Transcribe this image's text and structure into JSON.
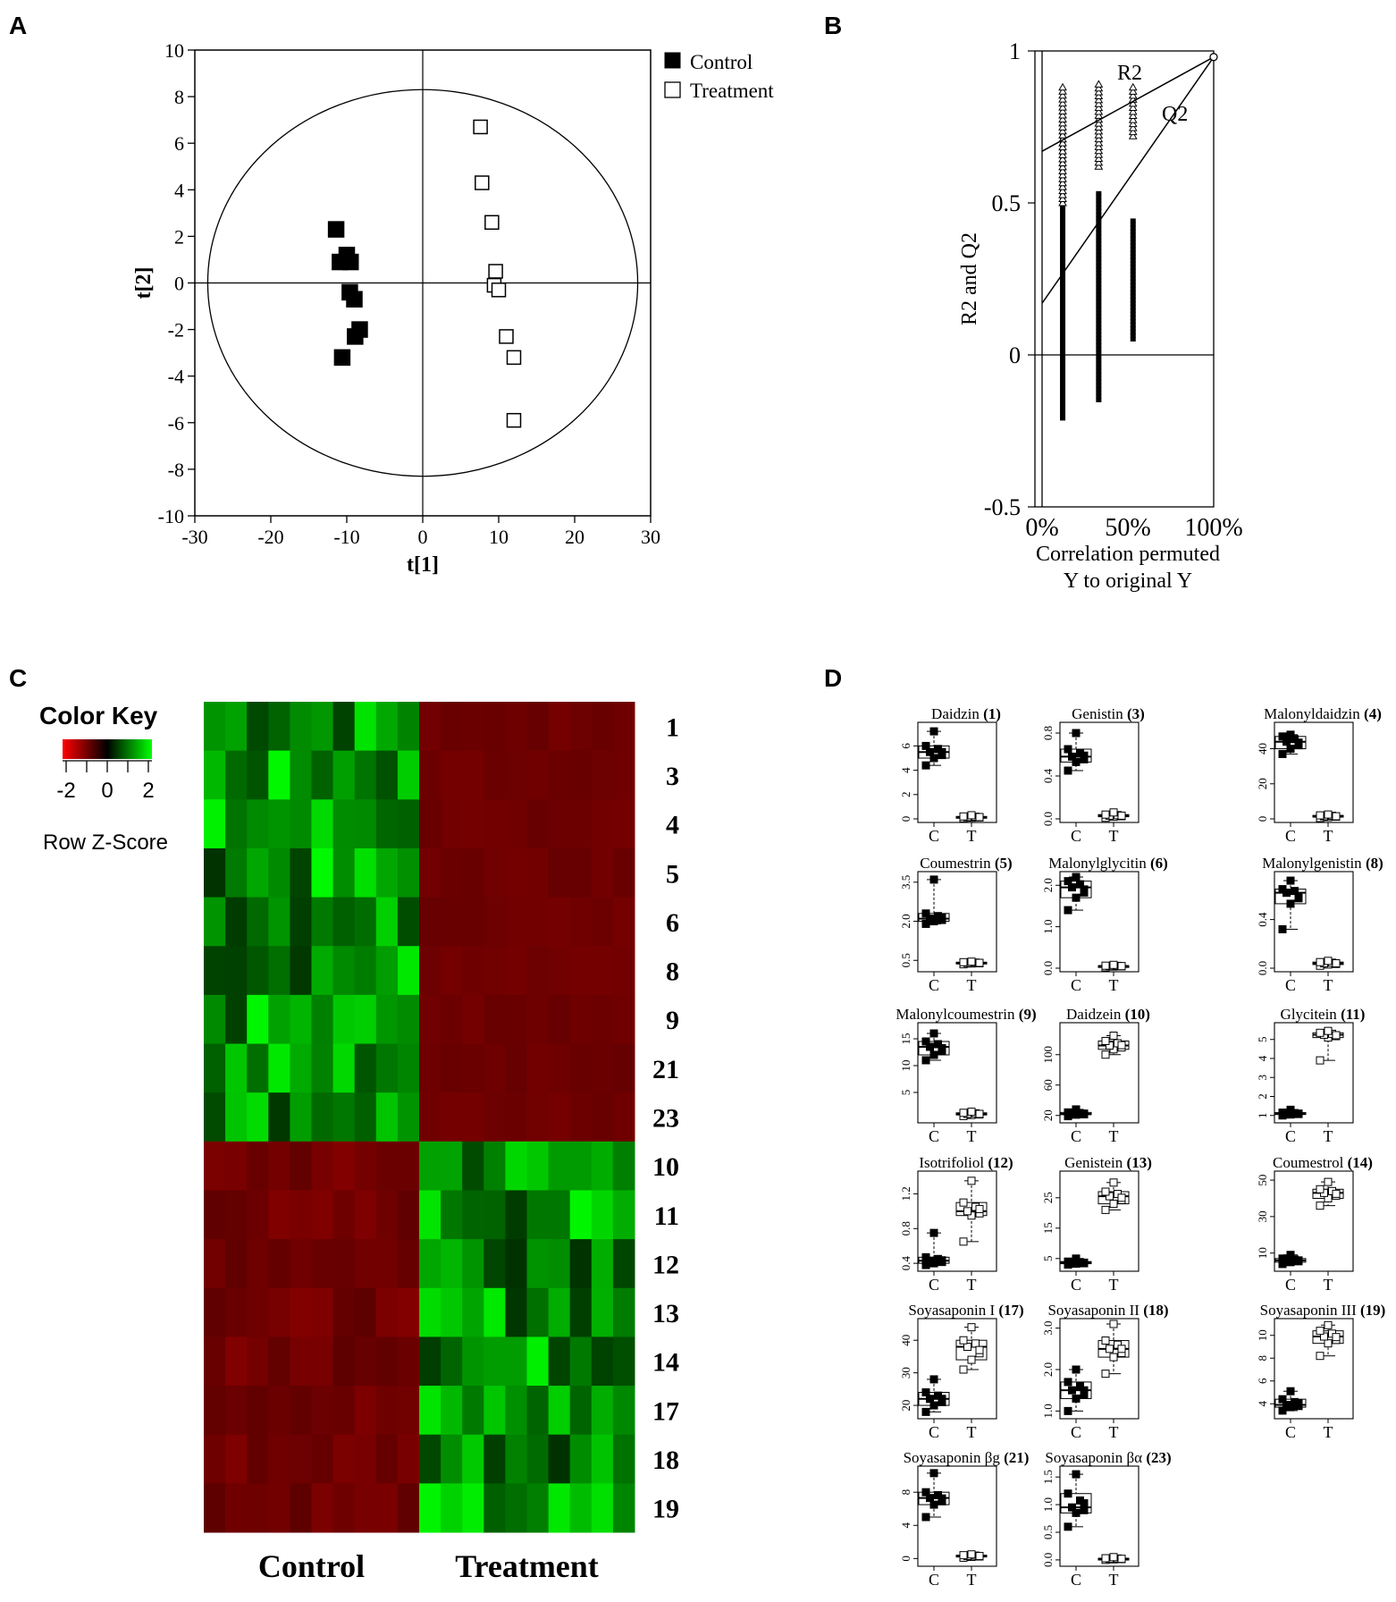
{
  "panel_labels": [
    "A",
    "B",
    "C",
    "D"
  ],
  "chart_data": [
    {
      "panel": "A",
      "type": "scatter",
      "xlabel": "t[1]",
      "ylabel": "t[2]",
      "xlim": [
        -30,
        30
      ],
      "ylim": [
        -10,
        10
      ],
      "xticks": [
        "-30",
        "-20",
        "-10",
        "0",
        "10",
        "20",
        "30"
      ],
      "yticks": [
        "-10",
        "-8",
        "-6",
        "-4",
        "-2",
        "0",
        "2",
        "4",
        "6",
        "8",
        "10"
      ],
      "ellipse_radius": [
        28.3,
        8.3
      ],
      "legend": "top-right",
      "series": [
        {
          "name": "Control",
          "marker": "filled-square",
          "color": "#000000",
          "points": [
            [
              -11.4,
              2.3
            ],
            [
              -10.9,
              0.9
            ],
            [
              -10.0,
              1.2
            ],
            [
              -9.5,
              0.9
            ],
            [
              -9.6,
              -0.4
            ],
            [
              -9.0,
              -0.7
            ],
            [
              -8.3,
              -2.0
            ],
            [
              -8.9,
              -2.3
            ],
            [
              -10.6,
              -3.2
            ]
          ]
        },
        {
          "name": "Treatment",
          "marker": "open-square",
          "color": "#000000",
          "points": [
            [
              7.6,
              6.7
            ],
            [
              7.8,
              4.3
            ],
            [
              9.1,
              2.6
            ],
            [
              9.6,
              0.5
            ],
            [
              9.4,
              -0.1
            ],
            [
              10.0,
              -0.3
            ],
            [
              11.0,
              -2.3
            ],
            [
              12.0,
              -3.2
            ],
            [
              12.0,
              -5.9
            ]
          ]
        }
      ]
    },
    {
      "panel": "B",
      "type": "scatter",
      "xlabel": "Correlation permuted Y to original Y",
      "xlabel_lines": [
        "Correlation permuted",
        "Y to original Y"
      ],
      "ylabel": "R2 and Q2",
      "xlim": [
        0,
        100
      ],
      "ylim": [
        -0.5,
        1
      ],
      "xticks": [
        "0%",
        "50%",
        "100%"
      ],
      "yticks": [
        "-0.5",
        "0",
        "0.5",
        "1"
      ],
      "r2_label": "R2",
      "q2_label": "Q2",
      "r2_line": {
        "intercept": 0.67,
        "end": [
          100,
          0.98
        ]
      },
      "q2_line": {
        "intercept": 0.17,
        "end": [
          100,
          0.98
        ]
      },
      "r2_permutations": [
        {
          "x": 12,
          "min": 0.5,
          "max": 0.88
        },
        {
          "x": 33,
          "min": 0.62,
          "max": 0.89
        },
        {
          "x": 53,
          "min": 0.72,
          "max": 0.88
        }
      ],
      "q2_permutations": [
        {
          "x": 12,
          "min": -0.21,
          "max": 0.72
        },
        {
          "x": 33,
          "min": -0.15,
          "max": 0.53
        },
        {
          "x": 53,
          "min": 0.05,
          "max": 0.44
        }
      ],
      "original": [
        100,
        0.98
      ]
    },
    {
      "panel": "C",
      "type": "heatmap",
      "color_key_title": "Color Key",
      "color_key_ticks": [
        "-2",
        "0",
        "2"
      ],
      "color_key_label": "Row Z-Score",
      "rows": [
        "1",
        "3",
        "4",
        "5",
        "6",
        "8",
        "9",
        "21",
        "23",
        "10",
        "11",
        "12",
        "13",
        "14",
        "17",
        "18",
        "19"
      ],
      "groups": [
        "Control",
        "Treatment"
      ],
      "columns_per_group": 10,
      "row_group_up": [
        "Control",
        "Control",
        "Control",
        "Control",
        "Control",
        "Control",
        "Control",
        "Control",
        "Control",
        "Treatment",
        "Treatment",
        "Treatment",
        "Treatment",
        "Treatment",
        "Treatment",
        "Treatment",
        "Treatment"
      ],
      "pattern": "Rows 1-23 high (green) in Control and low (red) in Treatment; rows 10-19 low (red) in Control and high (green) in Treatment"
    },
    {
      "panel": "D",
      "type": "box",
      "categories": [
        "C",
        "T"
      ],
      "plots": [
        {
          "name": "Daidzin",
          "num": "(1)",
          "yticks": [
            "0",
            "2",
            "4",
            "6"
          ],
          "ylim": [
            0,
            7.5
          ],
          "C": [
            4.4,
            5.0,
            5.5,
            6.0,
            7.2
          ],
          "T": [
            0.05,
            0.1,
            0.15,
            0.2,
            0.3
          ]
        },
        {
          "name": "Genistin",
          "num": "(3)",
          "yticks": [
            "0.0",
            "0.4",
            "0.8"
          ],
          "ylim": [
            0,
            0.85
          ],
          "C": [
            0.45,
            0.53,
            0.58,
            0.65,
            0.8
          ],
          "T": [
            0.01,
            0.02,
            0.03,
            0.04,
            0.06
          ]
        },
        {
          "name": "Malonyldaidzin",
          "num": "(4)",
          "yticks": [
            "0",
            "20",
            "40"
          ],
          "ylim": [
            0,
            52
          ],
          "C": [
            37,
            40,
            44,
            47,
            48
          ],
          "T": [
            0.5,
            1,
            1.5,
            2,
            2.5
          ]
        },
        {
          "name": "Coumestrin",
          "num": "(5)",
          "yticks": [
            "0.5",
            "2.0",
            "3.5"
          ],
          "ylim": [
            0.2,
            3.7
          ],
          "C": [
            1.9,
            2.0,
            2.1,
            2.3,
            3.6
          ],
          "T": [
            0.35,
            0.38,
            0.4,
            0.43,
            0.45
          ]
        },
        {
          "name": "Malonylglycitin",
          "num": "(6)",
          "yticks": [
            "0.0",
            "1.0",
            "2.0"
          ],
          "ylim": [
            0,
            2.2
          ],
          "C": [
            1.4,
            1.7,
            1.95,
            2.1,
            2.2
          ],
          "T": [
            0.02,
            0.04,
            0.05,
            0.06,
            0.08
          ]
        },
        {
          "name": "Malonylgenistin",
          "num": "(8)",
          "yticks": [
            "0.0",
            "0.4"
          ],
          "ylim": [
            0,
            0.75
          ],
          "C": [
            0.32,
            0.53,
            0.62,
            0.65,
            0.72
          ],
          "T": [
            0.02,
            0.03,
            0.04,
            0.05,
            0.06
          ]
        },
        {
          "name": "Malonylcoumestrin",
          "num": "(9)",
          "yticks": [
            "5",
            "10",
            "15"
          ],
          "ylim": [
            0,
            17
          ],
          "C": [
            11,
            12,
            13.5,
            14.5,
            16
          ],
          "T": [
            0.6,
            0.8,
            1.0,
            1.2,
            1.4
          ]
        },
        {
          "name": "Daidzein",
          "num": "(10)",
          "yticks": [
            "20",
            "60",
            "100"
          ],
          "ylim": [
            15,
            135
          ],
          "C": [
            19,
            21,
            22,
            24,
            28
          ],
          "T": [
            100,
            107,
            112,
            118,
            125
          ]
        },
        {
          "name": "Glycitein",
          "num": "(11)",
          "yticks": [
            "1",
            "2",
            "3",
            "4",
            "5"
          ],
          "ylim": [
            0.8,
            5.6
          ],
          "C": [
            1.0,
            1.05,
            1.1,
            1.15,
            1.3
          ],
          "T": [
            3.9,
            5.1,
            5.25,
            5.35,
            5.45
          ]
        },
        {
          "name": "Isotrifoliol",
          "num": "(12)",
          "yticks": [
            "0.4",
            "0.8",
            "1.2"
          ],
          "ylim": [
            0.35,
            1.4
          ],
          "C": [
            0.38,
            0.4,
            0.43,
            0.47,
            0.75
          ],
          "T": [
            0.65,
            0.95,
            1.0,
            1.1,
            1.35
          ]
        },
        {
          "name": "Genistein",
          "num": "(13)",
          "yticks": [
            "5",
            "15",
            "25"
          ],
          "ylim": [
            2,
            32
          ],
          "C": [
            3,
            3.3,
            3.6,
            4,
            5
          ],
          "T": [
            21,
            23,
            25.5,
            27,
            30
          ]
        },
        {
          "name": "Coumestrol",
          "num": "(14)",
          "yticks": [
            "10",
            "30",
            "50"
          ],
          "ylim": [
            2,
            52
          ],
          "C": [
            4,
            5,
            6,
            7,
            9
          ],
          "T": [
            36,
            40,
            43,
            45,
            49
          ]
        },
        {
          "name": "Soyasaponin  I",
          "num": "(17)",
          "yticks": [
            "20",
            "30",
            "40"
          ],
          "ylim": [
            17,
            45
          ],
          "C": [
            18,
            20,
            22,
            24,
            28
          ],
          "T": [
            31,
            34,
            38,
            40,
            44
          ]
        },
        {
          "name": "Soyasaponin  II",
          "num": "(18)",
          "yticks": [
            "1.0",
            "2.0",
            "3.0"
          ],
          "ylim": [
            0.9,
            3.1
          ],
          "C": [
            1.0,
            1.3,
            1.5,
            1.7,
            2.0
          ],
          "T": [
            1.9,
            2.3,
            2.5,
            2.7,
            3.1
          ]
        },
        {
          "name": "Soyasaponin III",
          "num": "(19)",
          "yticks": [
            "4",
            "6",
            "8",
            "10"
          ],
          "ylim": [
            3,
            11
          ],
          "C": [
            3.4,
            3.7,
            3.9,
            4.4,
            5.1
          ],
          "T": [
            8.2,
            9.3,
            9.9,
            10.4,
            10.9
          ]
        },
        {
          "name": "Soyasaponin βg",
          "num": "(21)",
          "yticks": [
            "0",
            "4",
            "8"
          ],
          "ylim": [
            -0.5,
            10.5
          ],
          "C": [
            5,
            6.5,
            7.3,
            8,
            10.3
          ],
          "T": [
            0.1,
            0.2,
            0.3,
            0.4,
            0.5
          ]
        },
        {
          "name": "Soyasaponin  βα",
          "num": "(23)",
          "yticks": [
            "0.0",
            "0.5",
            "1.0",
            "1.5"
          ],
          "ylim": [
            -0.05,
            1.6
          ],
          "C": [
            0.6,
            0.85,
            0.95,
            1.2,
            1.55
          ],
          "T": [
            0.0,
            0.01,
            0.02,
            0.03,
            0.05
          ]
        }
      ]
    }
  ]
}
